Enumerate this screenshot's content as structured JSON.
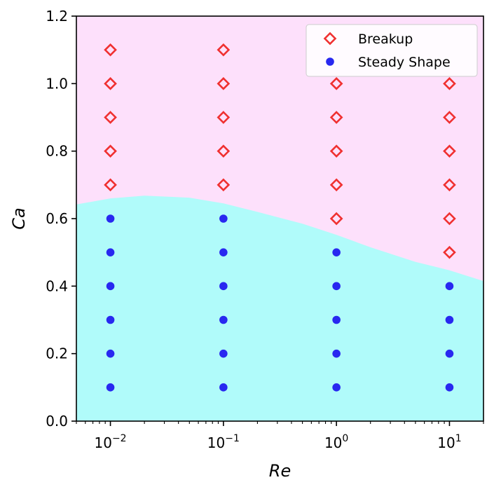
{
  "chart_data": {
    "type": "scatter",
    "xlabel": "Re",
    "ylabel": "Ca",
    "xscale": "log",
    "xlim": [
      0.005,
      20
    ],
    "ylim": [
      0.0,
      1.2
    ],
    "xticks": [
      {
        "value": 0.01,
        "base": "10",
        "exp": "−2"
      },
      {
        "value": 0.1,
        "base": "10",
        "exp": "−1"
      },
      {
        "value": 1,
        "base": "10",
        "exp": "0"
      },
      {
        "value": 10,
        "base": "10",
        "exp": "1"
      }
    ],
    "yticks": [
      {
        "value": 0.0,
        "label": "0.0"
      },
      {
        "value": 0.2,
        "label": "0.2"
      },
      {
        "value": 0.4,
        "label": "0.4"
      },
      {
        "value": 0.6,
        "label": "0.6"
      },
      {
        "value": 0.8,
        "label": "0.8"
      },
      {
        "value": 1.0,
        "label": "1.0"
      },
      {
        "value": 1.2,
        "label": "1.2"
      }
    ],
    "grid": false,
    "legend_position": "top-right",
    "series": [
      {
        "name": "Breakup",
        "marker": "diamond-open",
        "color": "#f03030",
        "points": [
          [
            0.01,
            0.7
          ],
          [
            0.01,
            0.8
          ],
          [
            0.01,
            0.9
          ],
          [
            0.01,
            1.0
          ],
          [
            0.01,
            1.1
          ],
          [
            0.1,
            0.7
          ],
          [
            0.1,
            0.8
          ],
          [
            0.1,
            0.9
          ],
          [
            0.1,
            1.0
          ],
          [
            0.1,
            1.1
          ],
          [
            1,
            0.6
          ],
          [
            1,
            0.7
          ],
          [
            1,
            0.8
          ],
          [
            1,
            0.9
          ],
          [
            1,
            1.0
          ],
          [
            10,
            0.5
          ],
          [
            10,
            0.6
          ],
          [
            10,
            0.7
          ],
          [
            10,
            0.8
          ],
          [
            10,
            0.9
          ],
          [
            10,
            1.0
          ]
        ]
      },
      {
        "name": "Steady Shape",
        "marker": "circle-filled",
        "color": "#2828f0",
        "points": [
          [
            0.01,
            0.1
          ],
          [
            0.01,
            0.2
          ],
          [
            0.01,
            0.3
          ],
          [
            0.01,
            0.4
          ],
          [
            0.01,
            0.5
          ],
          [
            0.01,
            0.6
          ],
          [
            0.1,
            0.1
          ],
          [
            0.1,
            0.2
          ],
          [
            0.1,
            0.3
          ],
          [
            0.1,
            0.4
          ],
          [
            0.1,
            0.5
          ],
          [
            0.1,
            0.6
          ],
          [
            1,
            0.1
          ],
          [
            1,
            0.2
          ],
          [
            1,
            0.3
          ],
          [
            1,
            0.4
          ],
          [
            1,
            0.5
          ],
          [
            10,
            0.1
          ],
          [
            10,
            0.2
          ],
          [
            10,
            0.3
          ],
          [
            10,
            0.4
          ]
        ]
      }
    ],
    "regions": [
      {
        "name": "breakup-region",
        "color": "#fde0fb",
        "position": "above-boundary"
      },
      {
        "name": "steady-region",
        "color": "#b0fbfa",
        "position": "below-boundary"
      }
    ],
    "boundary": [
      [
        0.005,
        0.642
      ],
      [
        0.01,
        0.66
      ],
      [
        0.02,
        0.668
      ],
      [
        0.05,
        0.662
      ],
      [
        0.1,
        0.645
      ],
      [
        0.2,
        0.62
      ],
      [
        0.5,
        0.585
      ],
      [
        1,
        0.552
      ],
      [
        2,
        0.515
      ],
      [
        5,
        0.472
      ],
      [
        10,
        0.447
      ],
      [
        20,
        0.415
      ]
    ]
  }
}
